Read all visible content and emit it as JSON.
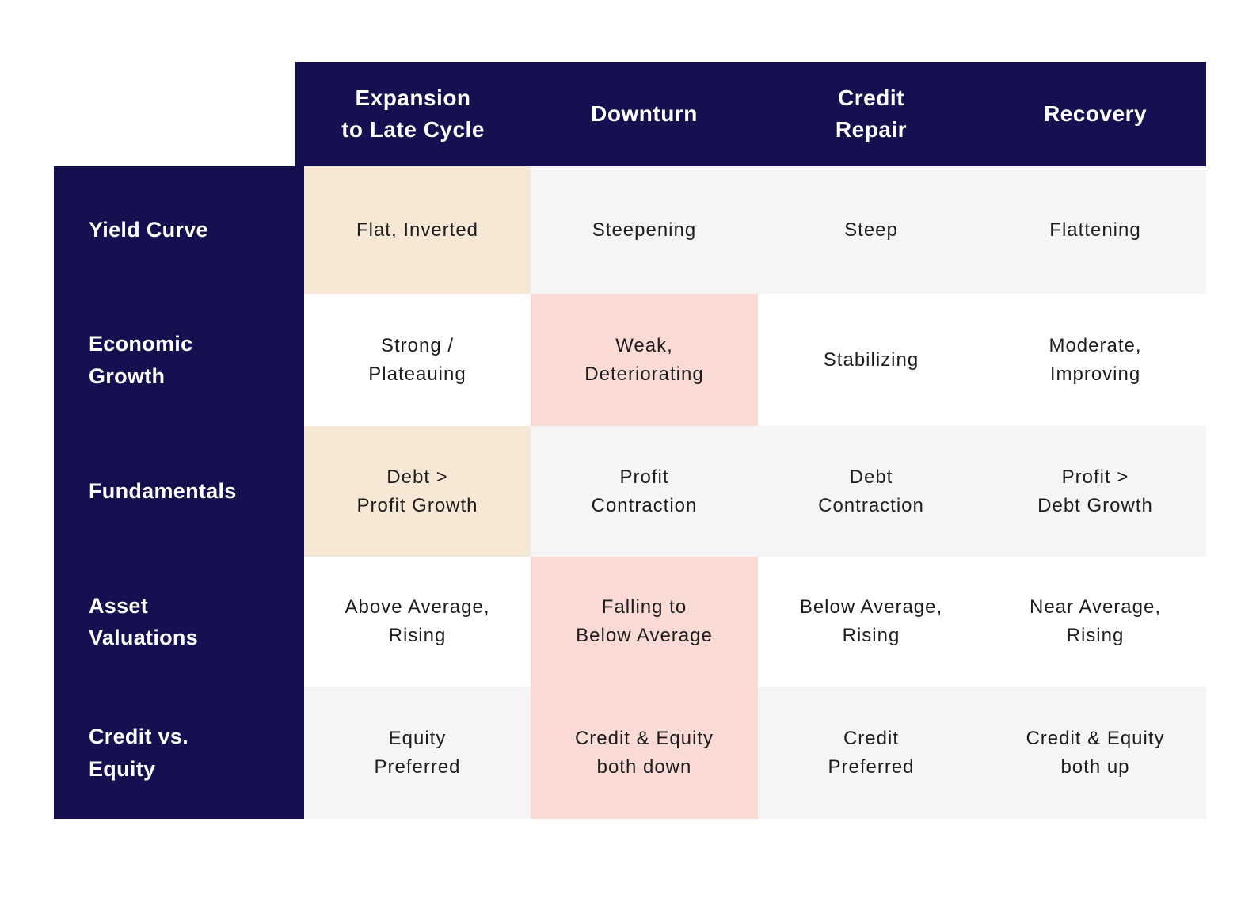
{
  "palette": {
    "navy": "#161050",
    "cream": "#f6e8d5",
    "pink": "#f9dad5",
    "gray": "#f5f5f5",
    "white": "#ffffff",
    "header_text": "#ffffff",
    "cell_text": "#1d1d1d"
  },
  "chart_data": {
    "type": "table",
    "title": "",
    "header_bg": "navy",
    "rowheader_bg": "navy",
    "columns": [
      "Expansion\nto Late Cycle",
      "Downturn",
      "Credit\nRepair",
      "Recovery"
    ],
    "row_labels": [
      "Yield Curve",
      "Economic\nGrowth",
      "Fundamentals",
      "Asset\nValuations",
      "Credit vs.\nEquity"
    ],
    "rows": [
      {
        "label": "Yield Curve",
        "cells": [
          {
            "text": "Flat, Inverted",
            "bg": "cream"
          },
          {
            "text": "Steepening",
            "bg": "gray"
          },
          {
            "text": "Steep",
            "bg": "gray"
          },
          {
            "text": "Flattening",
            "bg": "gray"
          }
        ]
      },
      {
        "label": "Economic\nGrowth",
        "cells": [
          {
            "text": "Strong /\nPlateauing",
            "bg": "white"
          },
          {
            "text": "Weak,\nDeteriorating",
            "bg": "pink"
          },
          {
            "text": "Stabilizing",
            "bg": "white"
          },
          {
            "text": "Moderate,\nImproving",
            "bg": "white"
          }
        ]
      },
      {
        "label": "Fundamentals",
        "cells": [
          {
            "text": "Debt >\nProfit Growth",
            "bg": "cream"
          },
          {
            "text": "Profit\nContraction",
            "bg": "gray"
          },
          {
            "text": "Debt\nContraction",
            "bg": "gray"
          },
          {
            "text": "Profit >\nDebt Growth",
            "bg": "gray"
          }
        ]
      },
      {
        "label": "Asset\nValuations",
        "cells": [
          {
            "text": "Above Average,\nRising",
            "bg": "white"
          },
          {
            "text": "Falling to\nBelow Average",
            "bg": "pink"
          },
          {
            "text": "Below Average,\nRising",
            "bg": "white"
          },
          {
            "text": "Near Average,\nRising",
            "bg": "white"
          }
        ]
      },
      {
        "label": "Credit vs.\nEquity",
        "cells": [
          {
            "text": "Equity\nPreferred",
            "bg": "gray"
          },
          {
            "text": "Credit & Equity\nboth down",
            "bg": "pink"
          },
          {
            "text": "Credit\nPreferred",
            "bg": "gray"
          },
          {
            "text": "Credit & Equity\nboth up",
            "bg": "gray"
          }
        ]
      }
    ]
  }
}
